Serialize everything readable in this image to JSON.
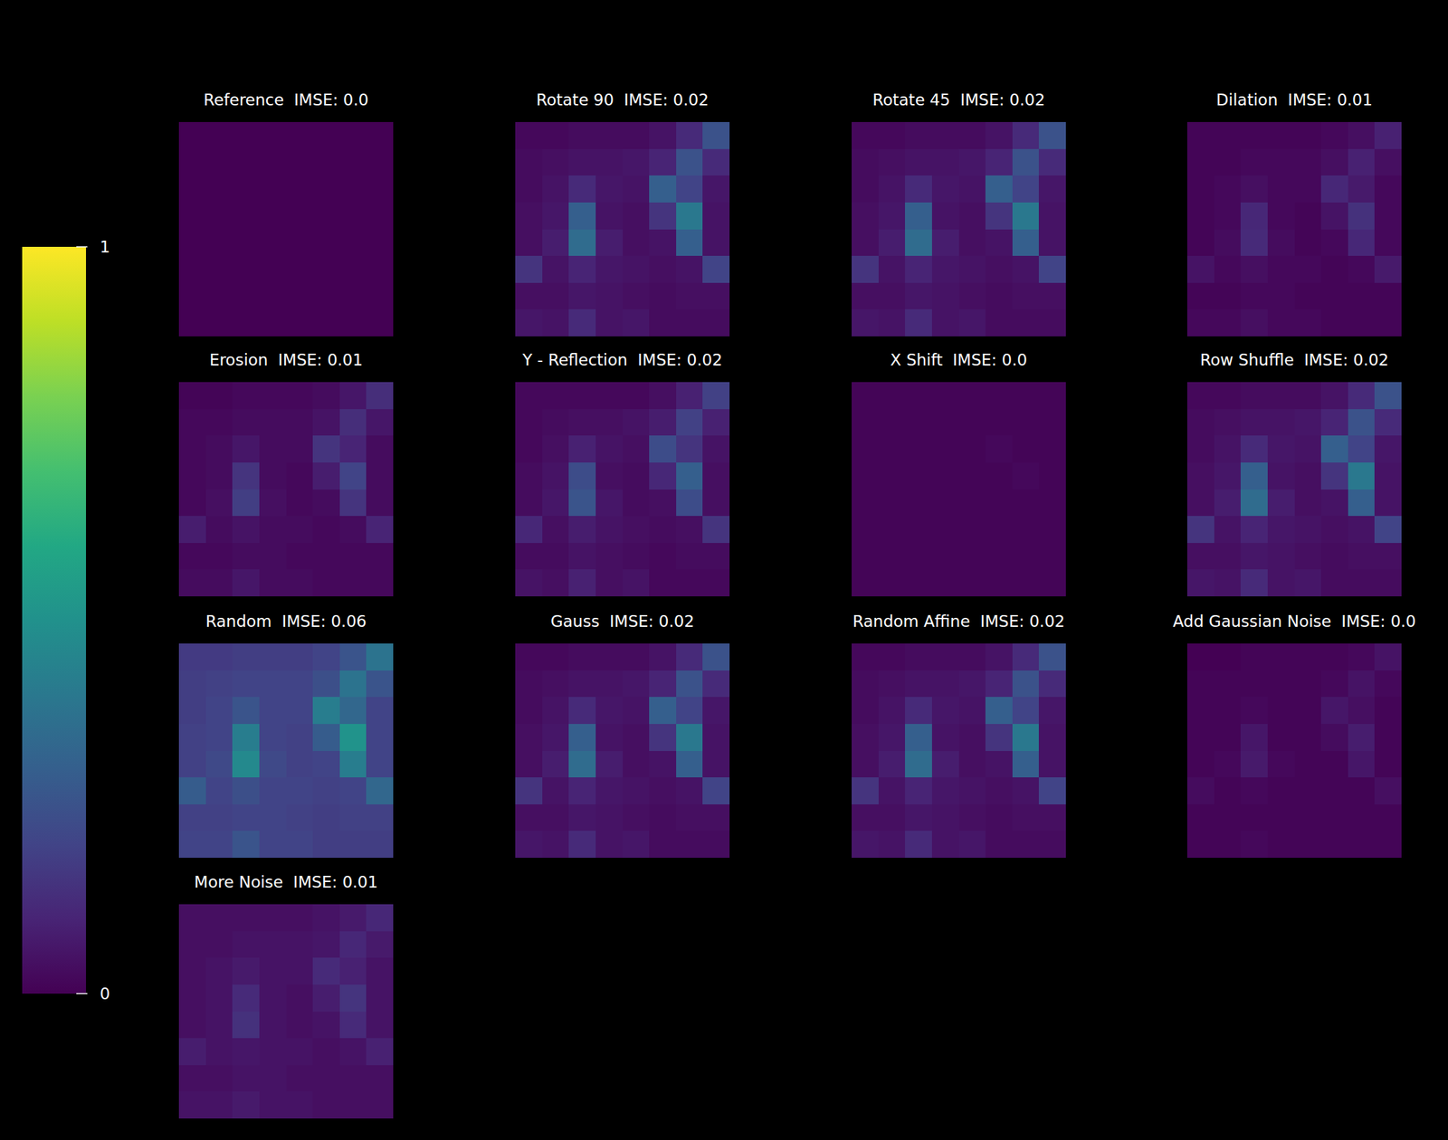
{
  "chart_data": [
    {
      "type": "heatmap",
      "title": "Reference  IMSE: 0.0",
      "cells": [
        [
          0,
          0,
          0,
          0,
          0,
          0,
          0,
          0
        ],
        [
          0,
          0,
          0,
          0,
          0,
          0,
          0,
          0
        ],
        [
          0,
          0,
          0,
          0,
          0,
          0,
          0,
          0
        ],
        [
          0,
          0,
          0,
          0,
          0,
          0,
          0,
          0
        ],
        [
          0,
          0,
          0,
          0,
          0,
          0,
          0,
          0
        ],
        [
          0,
          0,
          0,
          0,
          0,
          0,
          0,
          0
        ],
        [
          0,
          0,
          0,
          0,
          0,
          0,
          0,
          0
        ],
        [
          0,
          0,
          0,
          0,
          0,
          0,
          0,
          0
        ]
      ]
    },
    {
      "type": "heatmap",
      "title": "Rotate 90  IMSE: 0.02",
      "cells": [
        [
          0.02,
          0.02,
          0.03,
          0.03,
          0.03,
          0.05,
          0.12,
          0.25
        ],
        [
          0.03,
          0.04,
          0.05,
          0.05,
          0.06,
          0.1,
          0.25,
          0.12
        ],
        [
          0.03,
          0.05,
          0.12,
          0.06,
          0.05,
          0.3,
          0.2,
          0.06
        ],
        [
          0.04,
          0.06,
          0.3,
          0.05,
          0.04,
          0.15,
          0.4,
          0.05
        ],
        [
          0.04,
          0.08,
          0.35,
          0.08,
          0.04,
          0.05,
          0.3,
          0.05
        ],
        [
          0.15,
          0.05,
          0.1,
          0.06,
          0.05,
          0.04,
          0.05,
          0.2
        ],
        [
          0.04,
          0.04,
          0.06,
          0.05,
          0.04,
          0.03,
          0.04,
          0.04
        ],
        [
          0.06,
          0.05,
          0.12,
          0.05,
          0.06,
          0.03,
          0.03,
          0.03
        ]
      ]
    },
    {
      "type": "heatmap",
      "title": "Rotate 45  IMSE: 0.02",
      "cells": [
        [
          0.02,
          0.02,
          0.03,
          0.03,
          0.03,
          0.05,
          0.12,
          0.25
        ],
        [
          0.03,
          0.04,
          0.05,
          0.05,
          0.06,
          0.1,
          0.25,
          0.12
        ],
        [
          0.03,
          0.05,
          0.12,
          0.06,
          0.05,
          0.3,
          0.2,
          0.06
        ],
        [
          0.04,
          0.06,
          0.3,
          0.05,
          0.04,
          0.15,
          0.4,
          0.05
        ],
        [
          0.04,
          0.08,
          0.35,
          0.08,
          0.04,
          0.05,
          0.3,
          0.05
        ],
        [
          0.15,
          0.05,
          0.1,
          0.06,
          0.05,
          0.04,
          0.05,
          0.2
        ],
        [
          0.04,
          0.04,
          0.06,
          0.05,
          0.04,
          0.03,
          0.04,
          0.04
        ],
        [
          0.06,
          0.05,
          0.12,
          0.05,
          0.06,
          0.03,
          0.03,
          0.03
        ]
      ]
    },
    {
      "type": "heatmap",
      "title": "Dilation  IMSE: 0.01",
      "cells": [
        [
          0.01,
          0.01,
          0.01,
          0.01,
          0.01,
          0.02,
          0.04,
          0.09
        ],
        [
          0.01,
          0.01,
          0.02,
          0.02,
          0.02,
          0.04,
          0.09,
          0.04
        ],
        [
          0.01,
          0.02,
          0.04,
          0.02,
          0.02,
          0.11,
          0.07,
          0.02
        ],
        [
          0.01,
          0.02,
          0.11,
          0.02,
          0.01,
          0.05,
          0.14,
          0.02
        ],
        [
          0.01,
          0.03,
          0.12,
          0.03,
          0.01,
          0.02,
          0.11,
          0.02
        ],
        [
          0.05,
          0.02,
          0.04,
          0.02,
          0.02,
          0.01,
          0.02,
          0.07
        ],
        [
          0.01,
          0.01,
          0.02,
          0.02,
          0.01,
          0.01,
          0.01,
          0.01
        ],
        [
          0.02,
          0.02,
          0.04,
          0.02,
          0.02,
          0.01,
          0.01,
          0.01
        ]
      ]
    },
    {
      "type": "heatmap",
      "title": "Erosion  IMSE: 0.01",
      "cells": [
        [
          0.01,
          0.01,
          0.02,
          0.02,
          0.02,
          0.03,
          0.06,
          0.13
        ],
        [
          0.02,
          0.02,
          0.03,
          0.03,
          0.03,
          0.05,
          0.13,
          0.06
        ],
        [
          0.02,
          0.03,
          0.06,
          0.03,
          0.03,
          0.15,
          0.1,
          0.03
        ],
        [
          0.02,
          0.03,
          0.15,
          0.03,
          0.02,
          0.08,
          0.2,
          0.03
        ],
        [
          0.02,
          0.04,
          0.18,
          0.04,
          0.02,
          0.03,
          0.15,
          0.03
        ],
        [
          0.08,
          0.03,
          0.05,
          0.03,
          0.03,
          0.02,
          0.03,
          0.1
        ],
        [
          0.02,
          0.02,
          0.03,
          0.03,
          0.02,
          0.02,
          0.02,
          0.02
        ],
        [
          0.03,
          0.03,
          0.06,
          0.03,
          0.03,
          0.02,
          0.02,
          0.02
        ]
      ]
    },
    {
      "type": "heatmap",
      "title": "Y - Reflection  IMSE: 0.02",
      "cells": [
        [
          0.02,
          0.02,
          0.02,
          0.02,
          0.02,
          0.04,
          0.09,
          0.19
        ],
        [
          0.02,
          0.03,
          0.04,
          0.04,
          0.05,
          0.08,
          0.19,
          0.09
        ],
        [
          0.02,
          0.04,
          0.09,
          0.05,
          0.04,
          0.23,
          0.15,
          0.05
        ],
        [
          0.03,
          0.05,
          0.23,
          0.04,
          0.03,
          0.11,
          0.3,
          0.04
        ],
        [
          0.03,
          0.06,
          0.26,
          0.06,
          0.03,
          0.04,
          0.23,
          0.04
        ],
        [
          0.11,
          0.04,
          0.08,
          0.05,
          0.04,
          0.03,
          0.04,
          0.15
        ],
        [
          0.03,
          0.03,
          0.05,
          0.04,
          0.03,
          0.02,
          0.03,
          0.03
        ],
        [
          0.05,
          0.04,
          0.09,
          0.04,
          0.05,
          0.02,
          0.02,
          0.02
        ]
      ]
    },
    {
      "type": "heatmap",
      "title": "X Shift  IMSE: 0.0",
      "cells": [
        [
          0.01,
          0.01,
          0.01,
          0.01,
          0.01,
          0.01,
          0.01,
          0.01
        ],
        [
          0.01,
          0.01,
          0.01,
          0.01,
          0.01,
          0.01,
          0.01,
          0.01
        ],
        [
          0.01,
          0.01,
          0.01,
          0.01,
          0.01,
          0.02,
          0.01,
          0.01
        ],
        [
          0.01,
          0.01,
          0.01,
          0.01,
          0.01,
          0.01,
          0.02,
          0.01
        ],
        [
          0.01,
          0.01,
          0.01,
          0.01,
          0.01,
          0.01,
          0.01,
          0.01
        ],
        [
          0.01,
          0.01,
          0.01,
          0.01,
          0.01,
          0.01,
          0.01,
          0.01
        ],
        [
          0.01,
          0.01,
          0.01,
          0.01,
          0.01,
          0.01,
          0.01,
          0.01
        ],
        [
          0.01,
          0.01,
          0.01,
          0.01,
          0.01,
          0.01,
          0.01,
          0.01
        ]
      ]
    },
    {
      "type": "heatmap",
      "title": "Row Shuffle  IMSE: 0.02",
      "cells": [
        [
          0.02,
          0.02,
          0.03,
          0.03,
          0.03,
          0.05,
          0.12,
          0.25
        ],
        [
          0.03,
          0.04,
          0.05,
          0.05,
          0.06,
          0.1,
          0.25,
          0.12
        ],
        [
          0.03,
          0.05,
          0.12,
          0.06,
          0.05,
          0.3,
          0.2,
          0.06
        ],
        [
          0.04,
          0.06,
          0.3,
          0.05,
          0.04,
          0.15,
          0.4,
          0.05
        ],
        [
          0.04,
          0.08,
          0.35,
          0.08,
          0.04,
          0.05,
          0.3,
          0.05
        ],
        [
          0.15,
          0.05,
          0.1,
          0.06,
          0.05,
          0.04,
          0.05,
          0.2
        ],
        [
          0.04,
          0.04,
          0.06,
          0.05,
          0.04,
          0.03,
          0.04,
          0.04
        ],
        [
          0.06,
          0.05,
          0.12,
          0.05,
          0.06,
          0.03,
          0.03,
          0.03
        ]
      ]
    },
    {
      "type": "heatmap",
      "title": "Random  IMSE: 0.06",
      "cells": [
        [
          0.17,
          0.17,
          0.18,
          0.18,
          0.18,
          0.2,
          0.26,
          0.38
        ],
        [
          0.18,
          0.19,
          0.2,
          0.2,
          0.2,
          0.24,
          0.38,
          0.26
        ],
        [
          0.18,
          0.2,
          0.26,
          0.2,
          0.2,
          0.42,
          0.33,
          0.2
        ],
        [
          0.19,
          0.2,
          0.42,
          0.2,
          0.19,
          0.29,
          0.51,
          0.2
        ],
        [
          0.19,
          0.22,
          0.47,
          0.22,
          0.19,
          0.2,
          0.42,
          0.2
        ],
        [
          0.29,
          0.2,
          0.24,
          0.2,
          0.2,
          0.19,
          0.2,
          0.33
        ],
        [
          0.19,
          0.19,
          0.2,
          0.2,
          0.19,
          0.18,
          0.19,
          0.19
        ],
        [
          0.2,
          0.2,
          0.26,
          0.2,
          0.2,
          0.18,
          0.18,
          0.18
        ]
      ]
    },
    {
      "type": "heatmap",
      "title": "Gauss  IMSE: 0.02",
      "cells": [
        [
          0.02,
          0.02,
          0.03,
          0.03,
          0.03,
          0.05,
          0.12,
          0.25
        ],
        [
          0.03,
          0.04,
          0.05,
          0.05,
          0.06,
          0.1,
          0.25,
          0.12
        ],
        [
          0.03,
          0.05,
          0.12,
          0.06,
          0.05,
          0.3,
          0.2,
          0.06
        ],
        [
          0.04,
          0.06,
          0.3,
          0.05,
          0.04,
          0.15,
          0.4,
          0.05
        ],
        [
          0.04,
          0.08,
          0.35,
          0.08,
          0.04,
          0.05,
          0.3,
          0.05
        ],
        [
          0.15,
          0.05,
          0.1,
          0.06,
          0.05,
          0.04,
          0.05,
          0.2
        ],
        [
          0.04,
          0.04,
          0.06,
          0.05,
          0.04,
          0.03,
          0.04,
          0.04
        ],
        [
          0.06,
          0.05,
          0.12,
          0.05,
          0.06,
          0.03,
          0.03,
          0.03
        ]
      ]
    },
    {
      "type": "heatmap",
      "title": "Random Affine  IMSE: 0.02",
      "cells": [
        [
          0.02,
          0.02,
          0.03,
          0.03,
          0.03,
          0.05,
          0.12,
          0.25
        ],
        [
          0.03,
          0.04,
          0.05,
          0.05,
          0.06,
          0.1,
          0.25,
          0.12
        ],
        [
          0.03,
          0.05,
          0.12,
          0.06,
          0.05,
          0.3,
          0.2,
          0.06
        ],
        [
          0.04,
          0.06,
          0.3,
          0.05,
          0.04,
          0.15,
          0.4,
          0.05
        ],
        [
          0.04,
          0.08,
          0.35,
          0.08,
          0.04,
          0.05,
          0.3,
          0.05
        ],
        [
          0.15,
          0.05,
          0.1,
          0.06,
          0.05,
          0.04,
          0.05,
          0.2
        ],
        [
          0.04,
          0.04,
          0.06,
          0.05,
          0.04,
          0.03,
          0.04,
          0.04
        ],
        [
          0.06,
          0.05,
          0.12,
          0.05,
          0.06,
          0.03,
          0.03,
          0.03
        ]
      ]
    },
    {
      "type": "heatmap",
      "title": "Add Gaussian Noise  IMSE: 0.0",
      "cells": [
        [
          0,
          0,
          0.01,
          0.01,
          0.01,
          0.01,
          0.02,
          0.05
        ],
        [
          0.01,
          0.01,
          0.01,
          0.01,
          0.01,
          0.02,
          0.05,
          0.02
        ],
        [
          0.01,
          0.01,
          0.02,
          0.01,
          0.01,
          0.06,
          0.04,
          0.01
        ],
        [
          0.01,
          0.01,
          0.06,
          0.01,
          0.01,
          0.03,
          0.08,
          0.01
        ],
        [
          0.01,
          0.02,
          0.07,
          0.02,
          0.01,
          0.01,
          0.06,
          0.01
        ],
        [
          0.03,
          0.01,
          0.02,
          0.01,
          0.01,
          0.01,
          0.01,
          0.04
        ],
        [
          0.01,
          0.01,
          0.01,
          0.01,
          0.01,
          0.01,
          0.01,
          0.01
        ],
        [
          0.01,
          0.01,
          0.02,
          0.01,
          0.01,
          0.01,
          0.01,
          0.01
        ]
      ]
    },
    {
      "type": "heatmap",
      "title": "More Noise  IMSE: 0.01",
      "cells": [
        [
          0.04,
          0.04,
          0.04,
          0.04,
          0.04,
          0.05,
          0.07,
          0.11
        ],
        [
          0.04,
          0.04,
          0.05,
          0.05,
          0.05,
          0.06,
          0.11,
          0.07
        ],
        [
          0.04,
          0.05,
          0.07,
          0.05,
          0.05,
          0.12,
          0.09,
          0.05
        ],
        [
          0.04,
          0.05,
          0.12,
          0.05,
          0.04,
          0.08,
          0.15,
          0.05
        ],
        [
          0.04,
          0.05,
          0.14,
          0.05,
          0.04,
          0.05,
          0.12,
          0.05
        ],
        [
          0.08,
          0.05,
          0.06,
          0.05,
          0.05,
          0.04,
          0.05,
          0.09
        ],
        [
          0.04,
          0.04,
          0.05,
          0.05,
          0.04,
          0.04,
          0.04,
          0.04
        ],
        [
          0.05,
          0.05,
          0.07,
          0.05,
          0.05,
          0.04,
          0.04,
          0.04
        ]
      ]
    }
  ],
  "colorbar": {
    "range": [
      0,
      1
    ],
    "ticks": [
      0,
      1
    ]
  }
}
